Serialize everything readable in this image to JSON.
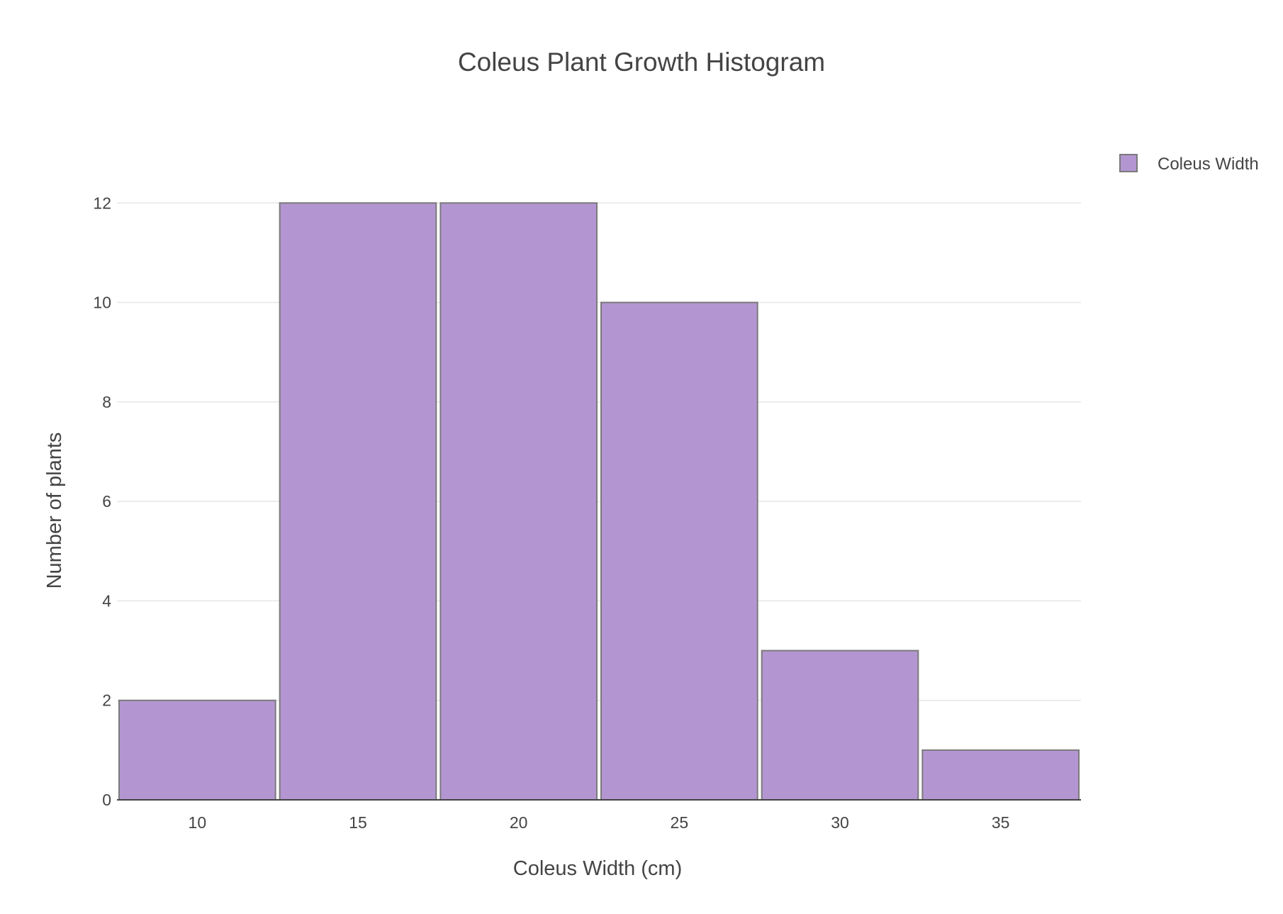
{
  "chart_data": {
    "type": "bar",
    "title": "Coleus Plant Growth Histogram",
    "xlabel": "Coleus Width (cm)",
    "ylabel": "Number of plants",
    "bin_width": 5,
    "bins": [
      {
        "center": 10,
        "count": 2
      },
      {
        "center": 15,
        "count": 12
      },
      {
        "center": 20,
        "count": 12
      },
      {
        "center": 25,
        "count": 10
      },
      {
        "center": 30,
        "count": 3
      },
      {
        "center": 35,
        "count": 1
      }
    ],
    "categories": [
      "10",
      "15",
      "20",
      "25",
      "30",
      "35"
    ],
    "series": [
      {
        "name": "Coleus Width",
        "values": [
          2,
          12,
          12,
          10,
          3,
          1
        ]
      }
    ],
    "xlim": [
      7.5,
      37.5
    ],
    "ylim": [
      0,
      13.8
    ],
    "y_ticks": [
      0,
      2,
      4,
      6,
      8,
      10,
      12
    ],
    "x_ticks": [
      10,
      15,
      20,
      25,
      30,
      35
    ],
    "grid": true,
    "legend_position": "top-right",
    "colors": {
      "bar_fill": "#b396d1",
      "bar_stroke": "#7a7a7a",
      "grid": "#e6e6e6",
      "text": "#444444"
    }
  }
}
